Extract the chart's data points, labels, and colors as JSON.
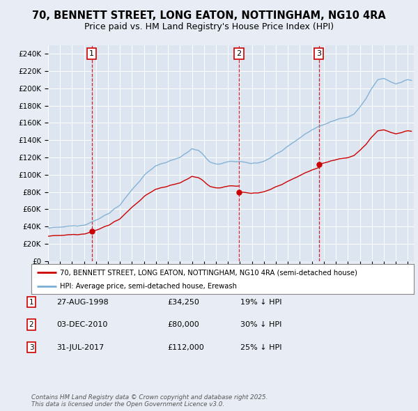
{
  "title": "70, BENNETT STREET, LONG EATON, NOTTINGHAM, NG10 4RA",
  "subtitle": "Price paid vs. HM Land Registry's House Price Index (HPI)",
  "background_color": "#e8edf5",
  "plot_bg_color": "#dce5f0",
  "legend_line1": "70, BENNETT STREET, LONG EATON, NOTTINGHAM, NG10 4RA (semi-detached house)",
  "legend_line2": "HPI: Average price, semi-detached house, Erewash",
  "sale_color": "#cc0000",
  "hpi_color": "#7aadd4",
  "sales": [
    {
      "date": 1998.65,
      "price": 34250,
      "label": "1"
    },
    {
      "date": 2010.92,
      "price": 80000,
      "label": "2"
    },
    {
      "date": 2017.58,
      "price": 112000,
      "label": "3"
    }
  ],
  "vline_dates": [
    1998.65,
    2010.92,
    2017.58
  ],
  "table": [
    {
      "num": "1",
      "date": "27-AUG-1998",
      "price": "£34,250",
      "hpi": "19% ↓ HPI"
    },
    {
      "num": "2",
      "date": "03-DEC-2010",
      "price": "£80,000",
      "hpi": "30% ↓ HPI"
    },
    {
      "num": "3",
      "date": "31-JUL-2017",
      "price": "£112,000",
      "hpi": "25% ↓ HPI"
    }
  ],
  "footer": "Contains HM Land Registry data © Crown copyright and database right 2025.\nThis data is licensed under the Open Government Licence v3.0.",
  "ylim": [
    0,
    250000
  ],
  "yticks": [
    0,
    20000,
    40000,
    60000,
    80000,
    100000,
    120000,
    140000,
    160000,
    180000,
    200000,
    220000,
    240000
  ],
  "xlim_start": 1995.0,
  "xlim_end": 2025.5
}
